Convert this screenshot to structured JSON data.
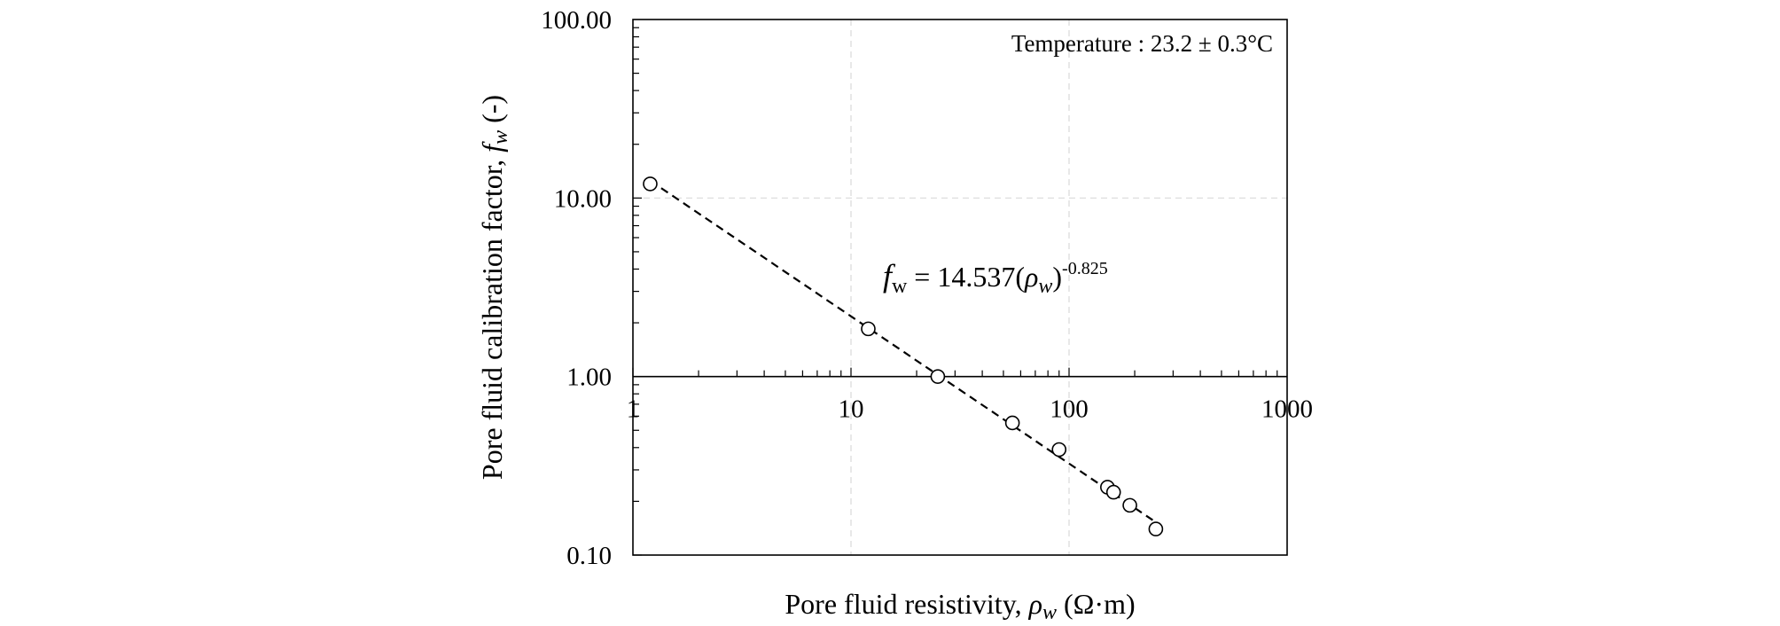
{
  "chart_data": {
    "type": "scatter",
    "x_scale": "log",
    "y_scale": "log",
    "xlim": [
      1,
      1000
    ],
    "ylim": [
      0.1,
      100
    ],
    "x_ticks": [
      1,
      10,
      100,
      1000
    ],
    "x_tick_labels": [
      "1",
      "10",
      "100",
      "1000"
    ],
    "y_ticks": [
      0.1,
      1,
      10,
      100
    ],
    "y_tick_labels": [
      "0.10",
      "1.00",
      "10.00",
      "100.00"
    ],
    "xlabel": {
      "prefix": "Pore fluid resistivity, ",
      "symbol": "ρ",
      "subscript": "w",
      "units": " (Ω·m)"
    },
    "ylabel": {
      "prefix": "Pore fluid calibration factor, ",
      "symbol": "f",
      "subscript": "w",
      "units": " (-)"
    },
    "grid": true,
    "annotation_temperature": "Temperature : 23.2 ± 0.3°C",
    "equation": {
      "lhs_symbol": "f",
      "lhs_subscript": "w",
      "equals": " = 14.537(",
      "rho_symbol": "ρ",
      "rho_subscript": "w",
      "close": ")",
      "exponent": "-0.825"
    },
    "fit": {
      "coefficient": 14.537,
      "exponent": -0.825,
      "x_range": [
        1.2,
        250
      ]
    },
    "points": [
      {
        "x": 1.2,
        "y": 12.0
      },
      {
        "x": 12,
        "y": 1.85
      },
      {
        "x": 25,
        "y": 1.0
      },
      {
        "x": 55,
        "y": 0.55
      },
      {
        "x": 90,
        "y": 0.39
      },
      {
        "x": 150,
        "y": 0.24
      },
      {
        "x": 160,
        "y": 0.225
      },
      {
        "x": 190,
        "y": 0.19
      },
      {
        "x": 250,
        "y": 0.14
      }
    ],
    "colors": {
      "axis": "#000000",
      "grid": "#d9d9d9",
      "marker": "#000000",
      "fit_line": "#000000"
    }
  }
}
